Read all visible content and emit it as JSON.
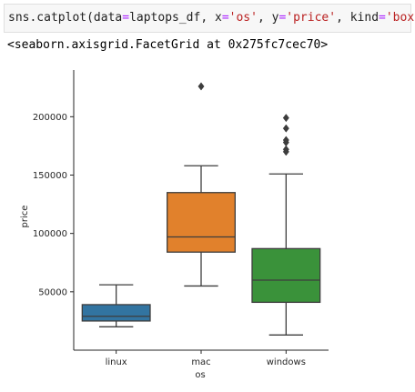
{
  "code_cell": {
    "code_parts": [
      "sns.catplot(data",
      "=",
      "laptops_df, x",
      "=",
      "'os'",
      ", y",
      "=",
      "'price'",
      ", kind",
      "=",
      "'box'",
      ")"
    ],
    "output_text": "<seaborn.axisgrid.FacetGrid at 0x275fc7cec70>"
  },
  "chart_data": {
    "type": "box",
    "xlabel": "os",
    "ylabel": "price",
    "categories": [
      "linux",
      "mac",
      "windows"
    ],
    "colors": [
      "#3274a1",
      "#e1812c",
      "#3a923a"
    ],
    "ylim": [
      0,
      240000
    ],
    "yticks": [
      50000,
      100000,
      150000,
      200000
    ],
    "ytick_labels": [
      "50000",
      "100000",
      "150000",
      "200000"
    ],
    "grid": false,
    "boxes": [
      {
        "category": "linux",
        "whisker_low": 20000,
        "q1": 25000,
        "median": 29000,
        "q3": 39000,
        "whisker_high": 56000,
        "outliers": []
      },
      {
        "category": "mac",
        "whisker_low": 55000,
        "q1": 84000,
        "median": 97000,
        "q3": 135000,
        "whisker_high": 158000,
        "outliers": [
          226000
        ]
      },
      {
        "category": "windows",
        "whisker_low": 13000,
        "q1": 41000,
        "median": 60000,
        "q3": 87000,
        "whisker_high": 151000,
        "outliers": [
          170000,
          172000,
          178000,
          180000,
          190000,
          199000
        ]
      }
    ]
  }
}
